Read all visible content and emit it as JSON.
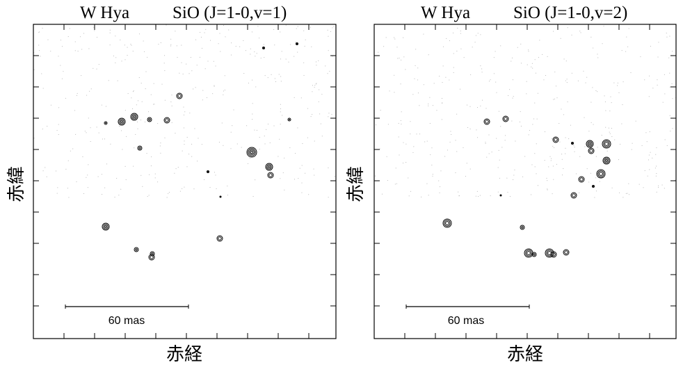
{
  "panels": [
    {
      "title": {
        "source": "W Hya",
        "line": "SiO (J=1-0,v=1)"
      },
      "y_label": "赤緯",
      "x_label": "赤経",
      "scale_bar": "60 mas"
    },
    {
      "title": {
        "source": "W Hya",
        "line": "SiO (J=1-0,v=2)"
      },
      "y_label": "赤緯",
      "x_label": "赤経",
      "scale_bar": "60 mas"
    }
  ]
}
